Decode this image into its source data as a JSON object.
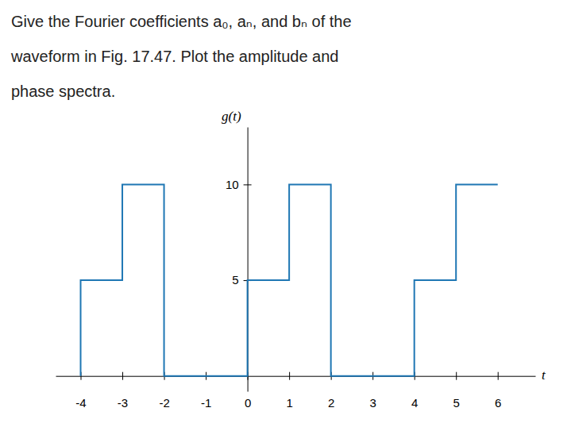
{
  "chart_data": {
    "type": "line",
    "title": [
      "Give the Fourier coefficients a₀, aₙ, and bₙ of the",
      "waveform in Fig. 17.47. Plot the amplitude and",
      "phase spectra."
    ],
    "x_label": "t",
    "y_label": "g(t)",
    "x": [
      -4,
      -4,
      -3,
      -3,
      -2,
      -2,
      0,
      0,
      1,
      1,
      2,
      2,
      4,
      4,
      5,
      5,
      6
    ],
    "values": [
      0,
      5,
      5,
      10,
      10,
      0,
      0,
      5,
      5,
      10,
      10,
      0,
      0,
      5,
      5,
      10,
      10
    ],
    "xlim": [
      -4.6,
      6.9
    ],
    "ylim": [
      -0.8,
      13.0
    ],
    "xticks": [
      -4,
      -3,
      -2,
      -1,
      0,
      1,
      2,
      3,
      4,
      5,
      6
    ],
    "yticks": [
      5,
      10
    ],
    "grid": false
  }
}
